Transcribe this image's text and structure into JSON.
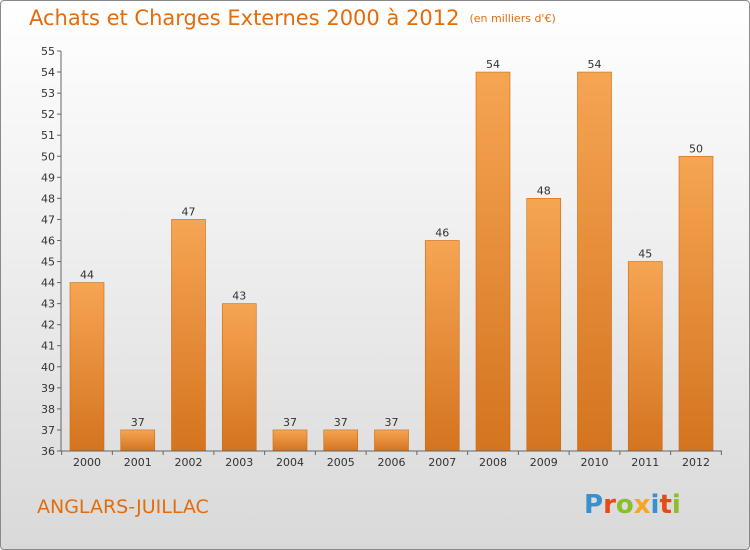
{
  "title": "Achats et Charges Externes 2000 à 2012",
  "subtitle": "(en milliers d'€)",
  "commune": "ANGLARS-JUILLAC",
  "logo": {
    "letters": [
      "P",
      "r",
      "o",
      "x",
      "i",
      "t",
      "i"
    ],
    "text": "Proxiti"
  },
  "colors": {
    "accent": "#e46c0a",
    "bar_light": "#f6a553",
    "bar_dark": "#d4741e"
  },
  "chart_data": {
    "type": "bar",
    "categories": [
      "2000",
      "2001",
      "2002",
      "2003",
      "2004",
      "2005",
      "2006",
      "2007",
      "2008",
      "2009",
      "2010",
      "2011",
      "2012"
    ],
    "values": [
      44,
      37,
      47,
      43,
      37,
      37,
      37,
      46,
      54,
      48,
      54,
      45,
      50
    ],
    "ylim": [
      36,
      55
    ],
    "yticks": [
      36,
      37,
      38,
      39,
      40,
      41,
      42,
      43,
      44,
      45,
      46,
      47,
      48,
      49,
      50,
      51,
      52,
      53,
      54,
      55
    ],
    "grid": false
  }
}
